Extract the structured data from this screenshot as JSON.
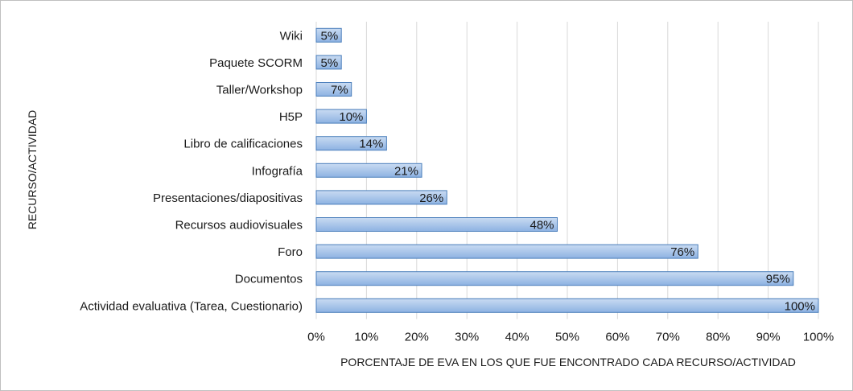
{
  "chart_data": {
    "type": "bar",
    "orientation": "horizontal",
    "categories": [
      "Wiki",
      "Paquete SCORM",
      "Taller/Workshop",
      "H5P",
      "Libro de calificaciones",
      "Infografía",
      "Presentaciones/diapositivas",
      "Recursos audiovisuales",
      "Foro",
      "Documentos",
      "Actividad evaluativa (Tarea, Cuestionario)"
    ],
    "values": [
      5,
      5,
      7,
      10,
      14,
      21,
      26,
      48,
      76,
      95,
      100
    ],
    "data_labels": [
      "5%",
      "5%",
      "7%",
      "10%",
      "14%",
      "21%",
      "26%",
      "48%",
      "76%",
      "95%",
      "100%"
    ],
    "xlim": [
      0,
      100
    ],
    "xticks": [
      0,
      10,
      20,
      30,
      40,
      50,
      60,
      70,
      80,
      90,
      100
    ],
    "xtick_labels": [
      "0%",
      "10%",
      "20%",
      "30%",
      "40%",
      "50%",
      "60%",
      "70%",
      "80%",
      "90%",
      "100%"
    ],
    "xlabel": "PORCENTAJE DE EVA EN LOS QUE FUE ENCONTRADO CADA RECURSO/ACTIVIDAD",
    "ylabel": "RECURSO/ACTIVIDAD",
    "grid": "vertical",
    "colors": {
      "bar_fill_top": "#c9dbf2",
      "bar_fill_bottom": "#8db2e2",
      "bar_stroke": "#4a7ebb",
      "grid": "#d9d9d9",
      "text": "#1a1a1a"
    }
  }
}
